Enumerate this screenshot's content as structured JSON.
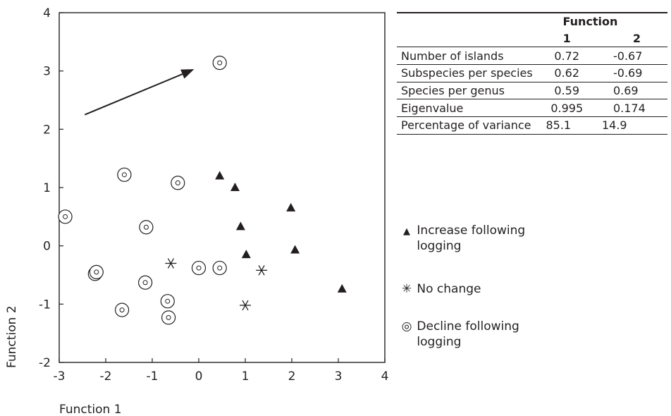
{
  "chart_data": {
    "type": "scatter",
    "xlabel": "Function 1",
    "ylabel": "Function 2",
    "xlim": [
      -3,
      4
    ],
    "ylim": [
      -2,
      4
    ],
    "xticks": [
      -3,
      -2,
      -1,
      0,
      1,
      2,
      3,
      4
    ],
    "yticks": [
      -2,
      -1,
      0,
      1,
      2,
      3,
      4
    ],
    "grid": false,
    "arrow": {
      "from": [
        -2.45,
        2.25
      ],
      "to": [
        -0.1,
        3.03
      ]
    },
    "series": [
      {
        "name": "Increase following logging",
        "marker": "filled-triangle",
        "points": [
          [
            0.45,
            1.2
          ],
          [
            0.78,
            1.0
          ],
          [
            1.98,
            0.65
          ],
          [
            0.9,
            0.33
          ],
          [
            2.07,
            -0.07
          ],
          [
            1.02,
            -0.15
          ],
          [
            3.08,
            -0.74
          ]
        ]
      },
      {
        "name": "No change",
        "marker": "asterisk",
        "points": [
          [
            -0.6,
            -0.3
          ],
          [
            1.35,
            -0.42
          ],
          [
            1.0,
            -1.02
          ]
        ]
      },
      {
        "name": "Decline following logging",
        "marker": "circle-dot",
        "points": [
          [
            0.45,
            3.14
          ],
          [
            -1.6,
            1.22
          ],
          [
            -0.45,
            1.08
          ],
          [
            -2.87,
            0.5
          ],
          [
            -1.13,
            0.32
          ],
          [
            -2.23,
            -0.48
          ],
          [
            -2.2,
            -0.45
          ],
          [
            0.0,
            -0.38
          ],
          [
            0.45,
            -0.38
          ],
          [
            -1.15,
            -0.63
          ],
          [
            -0.67,
            -0.95
          ],
          [
            -1.65,
            -1.1
          ],
          [
            -0.65,
            -1.23
          ]
        ]
      }
    ]
  },
  "table": {
    "header_group": "Function",
    "header_cols": [
      "1",
      "2"
    ],
    "rows": [
      {
        "label": "Number of islands",
        "v1": "0.72",
        "v2": "-0.67"
      },
      {
        "label": "Subspecies per species",
        "v1": "0.62",
        "v2": "-0.69"
      },
      {
        "label": "Species per genus",
        "v1": "0.59",
        "v2": "0.69"
      },
      {
        "label": "Eigenvalue",
        "v1": "0.995",
        "v2": "0.174"
      },
      {
        "label": "Percentage of variance",
        "v1": "85.1",
        "v2": "14.9"
      }
    ]
  },
  "legend": [
    {
      "symbol": "▲",
      "line1": "Increase following",
      "line2": "logging"
    },
    {
      "symbol": "✳",
      "line1": "No change",
      "line2": ""
    },
    {
      "symbol": "◎",
      "line1": "Decline following",
      "line2": "logging"
    }
  ]
}
